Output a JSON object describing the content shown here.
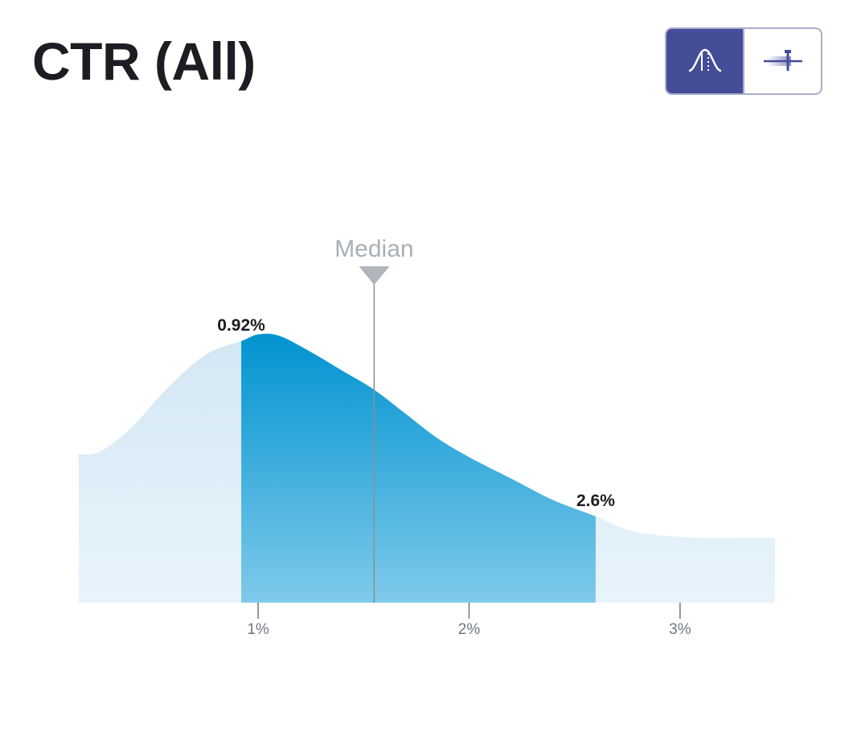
{
  "header": {
    "title": "CTR (All)"
  },
  "toggle": {
    "options": [
      {
        "name": "distribution-view",
        "icon": "bell-curve-icon",
        "active": true
      },
      {
        "name": "range-view",
        "icon": "range-bar-icon",
        "active": false
      }
    ]
  },
  "chart_data": {
    "type": "area",
    "title": "CTR (All)",
    "x_unit": "%",
    "xlim": [
      0.15,
      3.45
    ],
    "ylim": [
      0,
      1
    ],
    "grid": false,
    "ticks": [
      {
        "value": 1,
        "label": "1%"
      },
      {
        "value": 2,
        "label": "2%"
      },
      {
        "value": 3,
        "label": "3%"
      }
    ],
    "curve": {
      "x": [
        0.15,
        0.25,
        0.4,
        0.55,
        0.7,
        0.8,
        0.92,
        1.0,
        1.1,
        1.25,
        1.4,
        1.55,
        1.7,
        1.85,
        2.0,
        2.2,
        2.4,
        2.6,
        2.75,
        2.9,
        3.1,
        3.3,
        3.45
      ],
      "y": [
        0.55,
        0.56,
        0.65,
        0.78,
        0.89,
        0.94,
        0.97,
        0.995,
        0.99,
        0.93,
        0.86,
        0.79,
        0.7,
        0.61,
        0.54,
        0.46,
        0.38,
        0.32,
        0.27,
        0.25,
        0.24,
        0.24,
        0.24
      ]
    },
    "highlight_range": {
      "from": 0.92,
      "to": 2.6
    },
    "range_labels": [
      {
        "value": 0.92,
        "label": "0.92%"
      },
      {
        "value": 2.6,
        "label": "2.6%"
      }
    ],
    "median": {
      "value": 1.55,
      "label": "Median"
    },
    "colors": {
      "outer_top": "#d3e7f4",
      "outer_bottom": "#e8f4fb",
      "inner_top": "#0093d0",
      "inner_bottom": "#7fcaea",
      "median_line": "#8a9097",
      "median_marker": "#b0b6bb",
      "axis_tick": "#6f7780"
    }
  }
}
